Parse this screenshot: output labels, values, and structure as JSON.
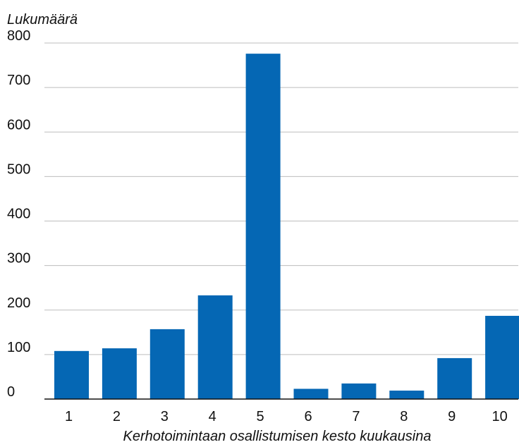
{
  "chart_data": {
    "type": "bar",
    "categories": [
      "1",
      "2",
      "3",
      "4",
      "5",
      "6",
      "7",
      "8",
      "9",
      "10"
    ],
    "values": [
      108,
      114,
      157,
      233,
      776,
      23,
      35,
      19,
      92,
      187
    ],
    "xlabel": "Kerhotoimintaan osallistumisen kesto kuukausina",
    "ylabel": "Lukumäärä",
    "ylim": [
      0,
      800
    ],
    "yticks": [
      "0",
      "100",
      "200",
      "300",
      "400",
      "500",
      "600",
      "700",
      "800"
    ],
    "grid": true,
    "legend": "none",
    "colors": {
      "bar": "#0567b4",
      "grid": "#bdbdbd",
      "axis": "#111111"
    }
  }
}
